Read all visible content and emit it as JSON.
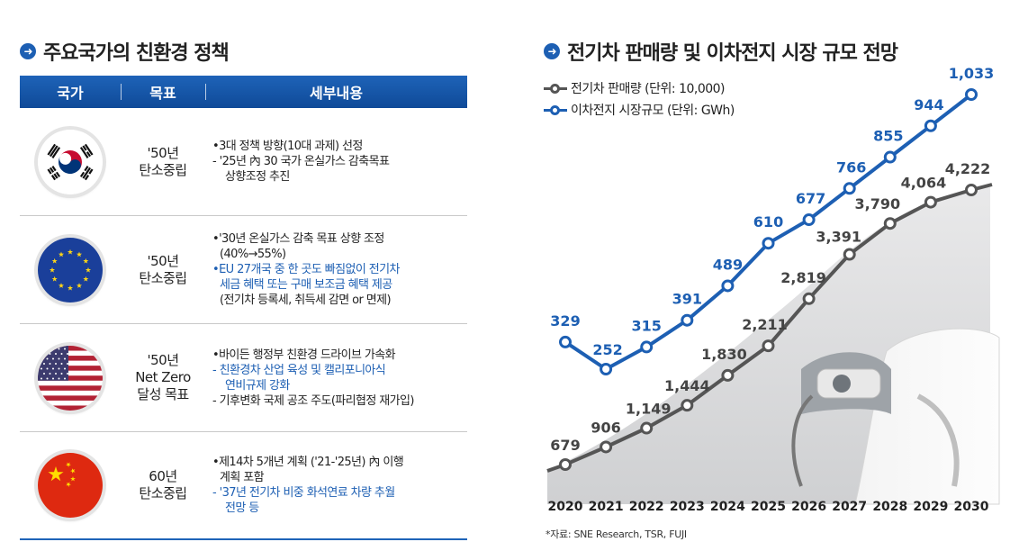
{
  "left": {
    "title": "주요국가의 친환경 정책",
    "headers": [
      "국가",
      "목표",
      "세부내용"
    ],
    "rows": [
      {
        "flag": "south-korea-flag-icon",
        "goal": [
          "'50년",
          "탄소중립"
        ],
        "details": [
          {
            "text": "•3대 정책 방향(10대 과제) 선정",
            "style": "normal"
          },
          {
            "text": " - '25년 內 30 국가 온실가스 감축목표",
            "style": "normal"
          },
          {
            "text": "상향조정 추진",
            "style": "indent"
          }
        ]
      },
      {
        "flag": "eu-flag-icon",
        "goal": [
          "'50년",
          "탄소중립"
        ],
        "details": [
          {
            "text": "•'30년 온실가스  감축 목표 상향 조정",
            "style": "normal"
          },
          {
            "text": "(40%→55%)",
            "style": "indent"
          },
          {
            "text": "•EU 27개국 중 한 곳도 빠짐없이 전기차",
            "style": "blue"
          },
          {
            "text": "세금 혜택 또는 구매 보조금 혜택 제공",
            "style": "blue-indent"
          },
          {
            "text": "(전기차 등록세, 취득세 감면 or 면제)",
            "style": "indent"
          }
        ]
      },
      {
        "flag": "usa-flag-icon",
        "goal": [
          "'50년",
          "Net Zero",
          "달성 목표"
        ],
        "details": [
          {
            "text": "•바이든 행정부 친환경 드라이브 가속화",
            "style": "normal"
          },
          {
            "text": " - 친환경차 산업 육성 및  캘리포니아식",
            "style": "blue"
          },
          {
            "text": "연비규제 강화",
            "style": "blue-indent"
          },
          {
            "text": " - 기후변화 국제 공조 주도(파리협정 재가입)",
            "style": "normal"
          }
        ]
      },
      {
        "flag": "china-flag-icon",
        "goal": [
          "60년",
          "탄소중립"
        ],
        "details": [
          {
            "text": "•제14차 5개년 계획 ('21-'25년) 內 이행",
            "style": "normal"
          },
          {
            "text": "계획 포함",
            "style": "indent"
          },
          {
            "text": " - '37년 전기차 비중 화석연료 차량 추월",
            "style": "blue"
          },
          {
            "text": "전망 등",
            "style": "blue-indent"
          }
        ]
      }
    ]
  },
  "chart_data": {
    "type": "line",
    "title": "전기차 판매량 및 이차전지 시장 규모 전망",
    "x": [
      "2020",
      "2021",
      "2022",
      "2023",
      "2024",
      "2025",
      "2026",
      "2027",
      "2028",
      "2029",
      "2030"
    ],
    "series": [
      {
        "name": "전기차 판매량 (단위: 10,000)",
        "color": "#555555",
        "values": [
          679,
          906,
          1149,
          1444,
          1830,
          2211,
          2819,
          3391,
          3790,
          4064,
          4222
        ],
        "labels": [
          "679",
          "906",
          "1,149",
          "1,444",
          "1,830",
          "2,211",
          "2,819",
          "3,391",
          "3,790",
          "4,064",
          "4,222"
        ]
      },
      {
        "name": "이차전지 시장규모 (단위: GWh)",
        "color": "#1d5fb3",
        "values": [
          329,
          252,
          315,
          391,
          489,
          610,
          677,
          766,
          855,
          944,
          1033
        ],
        "labels": [
          "329",
          "252",
          "315",
          "391",
          "489",
          "610",
          "677",
          "766",
          "855",
          "944",
          "1,033"
        ]
      }
    ],
    "source": "*자료: SNE Research, TSR, FUJI"
  },
  "colors": {
    "accent_blue": "#1d5fb3",
    "gray_series": "#555555"
  }
}
